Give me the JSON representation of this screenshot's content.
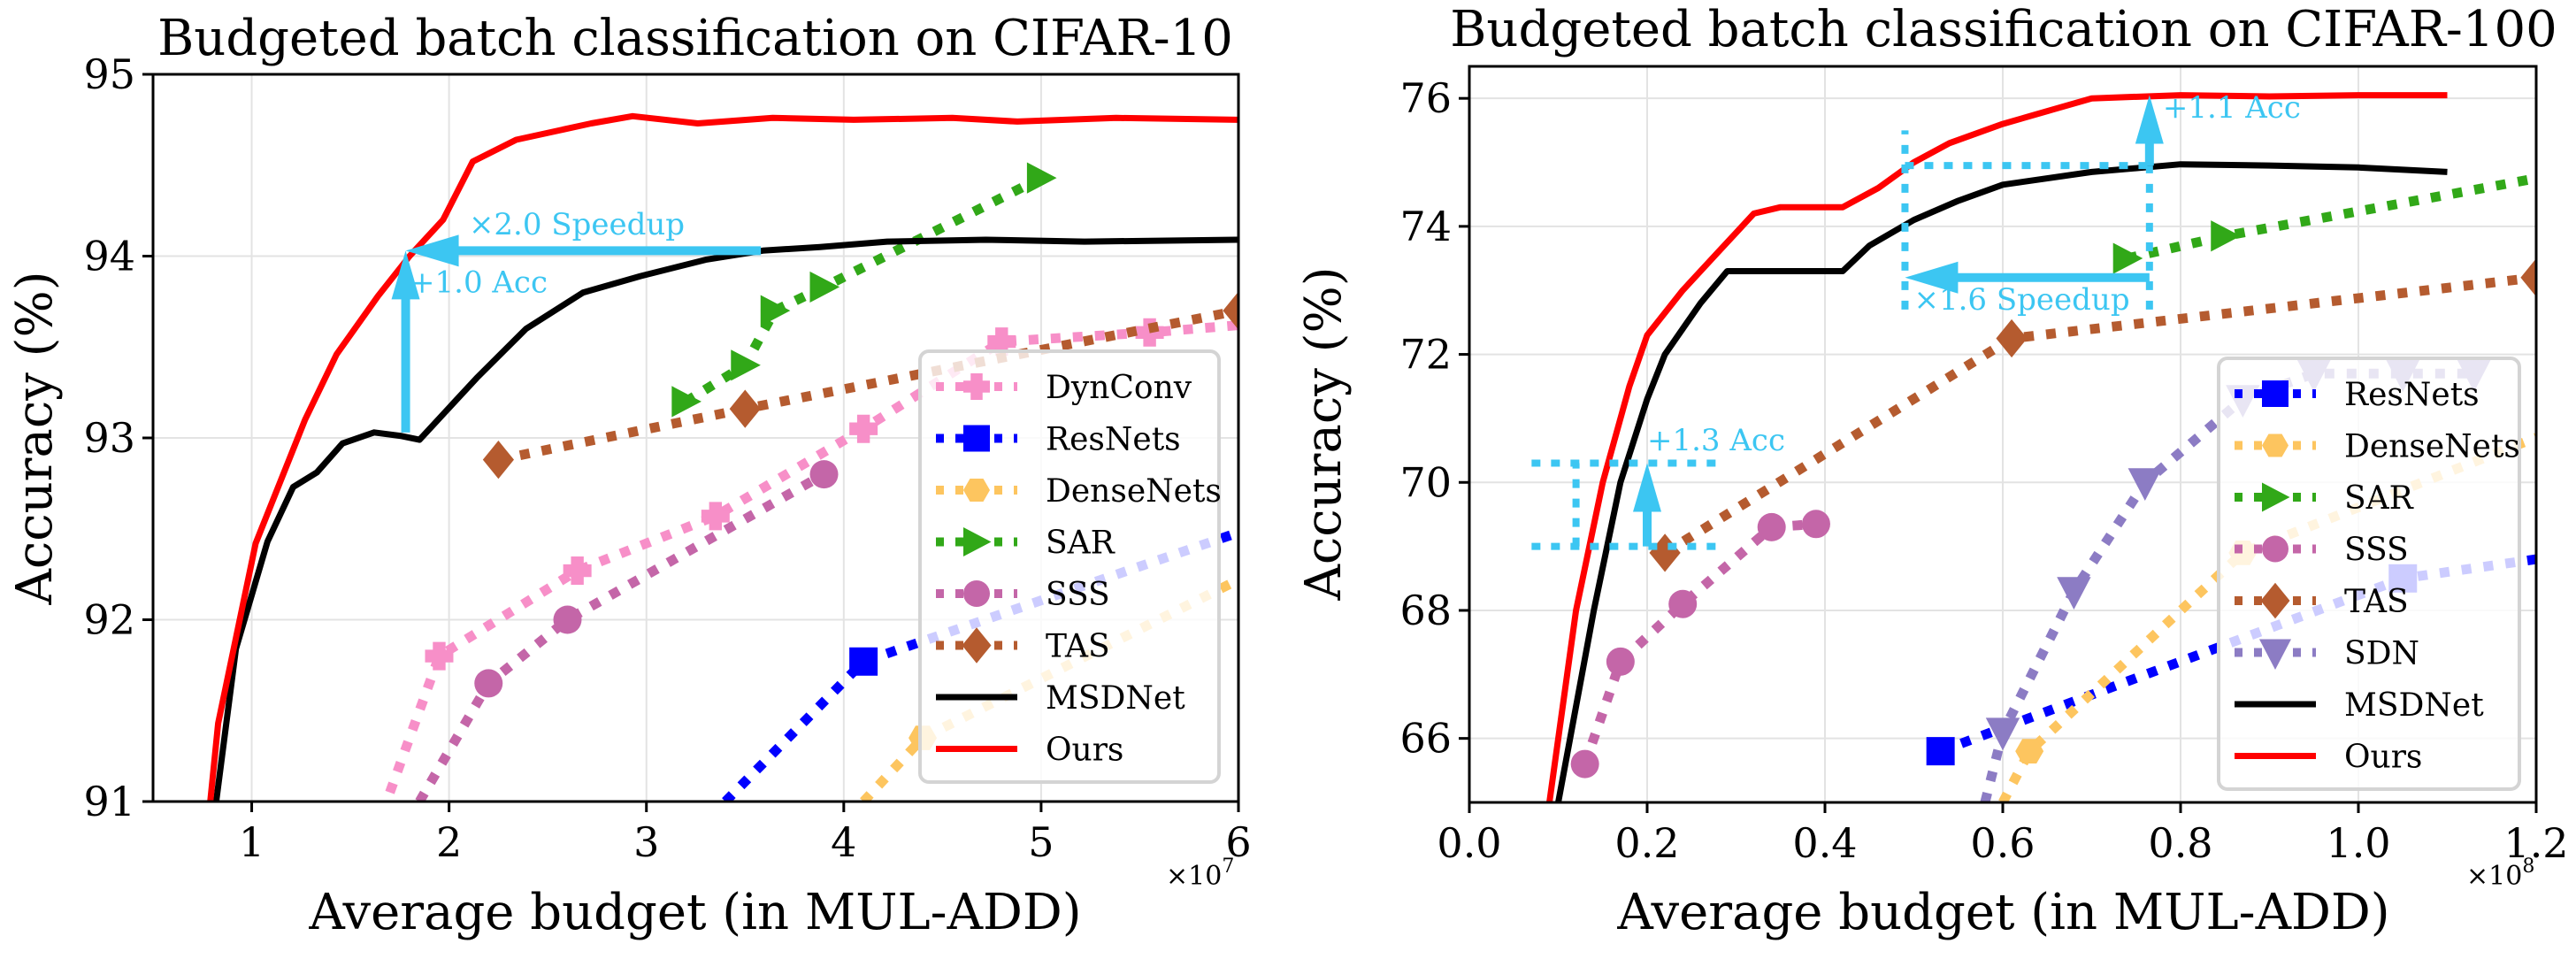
{
  "chart_data": [
    {
      "type": "line",
      "title": "Budgeted batch classification on CIFAR-10",
      "xlabel": "Average budget (in MUL-ADD)",
      "ylabel": "Accuracy (%)",
      "x_multiplier": "×10^7",
      "xlim": [
        0.5,
        6
      ],
      "ylim": [
        91,
        95
      ],
      "xticks": [
        1,
        2,
        3,
        4,
        5,
        6
      ],
      "xtick_labels": [
        "1",
        "2",
        "3",
        "4",
        "5",
        "6"
      ],
      "yticks": [
        91,
        92,
        93,
        94,
        95
      ],
      "ytick_labels": [
        "91",
        "92",
        "93",
        "94",
        "95"
      ],
      "grid": true,
      "legend_position": "bottom-right",
      "legend": [
        "DynConv",
        "ResNets",
        "DenseNets",
        "SAR",
        "SSS",
        "TAS",
        "MSDNet",
        "Ours"
      ],
      "series": [
        {
          "name": "DynConv",
          "color": "#f78fc8",
          "style": "dotted",
          "marker": "plus",
          "x": [
            1.7,
            1.95,
            2.65,
            3.35,
            4.1,
            4.8,
            5.55,
            6.0
          ],
          "y": [
            91.05,
            91.8,
            92.27,
            92.57,
            93.05,
            93.53,
            93.58,
            93.62
          ],
          "markers_at": [
            1,
            2,
            3,
            4,
            5,
            6
          ]
        },
        {
          "name": "ResNets",
          "color": "#0000ff",
          "style": "dotted",
          "marker": "square",
          "x": [
            3.4,
            4.1,
            6.0
          ],
          "y": [
            91.0,
            91.77,
            92.48
          ],
          "markers_at": [
            1
          ]
        },
        {
          "name": "DenseNets",
          "color": "#fdc55f",
          "style": "dotted",
          "marker": "hexagon",
          "x": [
            4.1,
            4.4,
            6.0
          ],
          "y": [
            91.0,
            91.35,
            92.22
          ],
          "markers_at": [
            1
          ]
        },
        {
          "name": "SAR",
          "color": "#31a818",
          "style": "dotted",
          "marker": "triangle-right",
          "x": [
            3.2,
            3.5,
            3.65,
            3.9,
            5.0
          ],
          "y": [
            93.2,
            93.4,
            93.7,
            93.83,
            94.43
          ],
          "markers_at": [
            0,
            1,
            2,
            3,
            4
          ]
        },
        {
          "name": "SSS",
          "color": "#c466a8",
          "style": "dotted",
          "marker": "circle",
          "x": [
            1.85,
            2.2,
            2.6,
            3.9
          ],
          "y": [
            91.0,
            91.65,
            92.0,
            92.8
          ],
          "markers_at": [
            1,
            2,
            3
          ]
        },
        {
          "name": "TAS",
          "color": "#b55b2f",
          "style": "dotted",
          "marker": "diamond",
          "x": [
            2.25,
            3.5,
            6.0
          ],
          "y": [
            92.88,
            93.16,
            93.7
          ],
          "markers_at": [
            0,
            1,
            2
          ]
        },
        {
          "name": "MSDNet",
          "color": "#000000",
          "style": "solid",
          "marker": "none",
          "x": [
            0.82,
            0.92,
            1.08,
            1.21,
            1.33,
            1.46,
            1.62,
            1.76,
            1.85,
            2.14,
            2.39,
            2.68,
            2.97,
            3.3,
            3.59,
            3.88,
            4.22,
            4.72,
            5.22,
            6.0
          ],
          "y": [
            91.0,
            91.84,
            92.43,
            92.73,
            92.81,
            92.97,
            93.03,
            93.01,
            92.99,
            93.33,
            93.6,
            93.8,
            93.89,
            93.98,
            94.03,
            94.05,
            94.08,
            94.09,
            94.08,
            94.09
          ]
        },
        {
          "name": "Ours",
          "color": "#ff0000",
          "style": "solid",
          "marker": "none",
          "x": [
            0.79,
            0.83,
            1.02,
            1.27,
            1.43,
            1.64,
            1.8,
            1.97,
            2.12,
            2.34,
            2.72,
            2.93,
            3.26,
            3.64,
            4.05,
            4.55,
            4.88,
            5.38,
            6.0
          ],
          "y": [
            91.0,
            91.43,
            92.42,
            93.1,
            93.46,
            93.78,
            94.0,
            94.2,
            94.52,
            94.64,
            94.73,
            94.77,
            94.73,
            94.76,
            94.75,
            94.76,
            94.74,
            94.76,
            94.75
          ]
        }
      ],
      "annotations": [
        {
          "text": "×2.0 Speedup",
          "type": "arrow-left",
          "from": [
            3.58,
            94.03
          ],
          "to": [
            1.78,
            94.03
          ],
          "text_at": [
            2.1,
            94.12
          ]
        },
        {
          "text": "+1.0 Acc",
          "type": "arrow-up",
          "from": [
            1.78,
            93.03
          ],
          "to": [
            1.78,
            94.03
          ],
          "text_at": [
            1.8,
            93.8
          ]
        }
      ]
    },
    {
      "type": "line",
      "title": "Budgeted batch classification on CIFAR-100",
      "xlabel": "Average budget (in MUL-ADD)",
      "ylabel": "Accuracy (%)",
      "x_multiplier": "×10^8",
      "xlim": [
        0.0,
        1.2
      ],
      "ylim": [
        65,
        76.5
      ],
      "xticks": [
        0.0,
        0.2,
        0.4,
        0.6,
        0.8,
        1.0,
        1.2
      ],
      "xtick_labels": [
        "0.0",
        "0.2",
        "0.4",
        "0.6",
        "0.8",
        "1.0",
        "1.2"
      ],
      "yticks": [
        66,
        68,
        70,
        72,
        74,
        76
      ],
      "ytick_labels": [
        "66",
        "68",
        "70",
        "72",
        "74",
        "76"
      ],
      "grid": true,
      "legend_position": "bottom-right",
      "legend": [
        "ResNets",
        "DenseNets",
        "SAR",
        "SSS",
        "TAS",
        "SDN",
        "MSDNet",
        "Ours"
      ],
      "series": [
        {
          "name": "ResNets",
          "color": "#0000ff",
          "style": "dotted",
          "marker": "square",
          "x": [
            0.53,
            1.05,
            1.2
          ],
          "y": [
            65.8,
            68.5,
            68.8
          ],
          "markers_at": [
            0,
            1
          ]
        },
        {
          "name": "DenseNets",
          "color": "#fdc55f",
          "style": "dotted",
          "marker": "hexagon",
          "x": [
            0.6,
            0.63,
            0.87,
            1.2
          ],
          "y": [
            65.0,
            65.8,
            68.9,
            70.7
          ],
          "markers_at": [
            1,
            2
          ]
        },
        {
          "name": "SAR",
          "color": "#31a818",
          "style": "dotted",
          "marker": "triangle-right",
          "x": [
            0.74,
            0.85,
            1.2
          ],
          "y": [
            73.5,
            73.85,
            74.75
          ],
          "markers_at": [
            0,
            1
          ]
        },
        {
          "name": "SSS",
          "color": "#c466a8",
          "style": "dotted",
          "marker": "circle",
          "x": [
            0.13,
            0.17,
            0.24,
            0.34,
            0.39
          ],
          "y": [
            65.6,
            67.2,
            68.1,
            69.3,
            69.35
          ],
          "markers_at": [
            0,
            1,
            2,
            3,
            4
          ]
        },
        {
          "name": "TAS",
          "color": "#b55b2f",
          "style": "dotted",
          "marker": "diamond",
          "x": [
            0.22,
            0.61,
            1.2
          ],
          "y": [
            68.9,
            72.25,
            73.2
          ],
          "markers_at": [
            0,
            1,
            2
          ]
        },
        {
          "name": "SDN",
          "color": "#8c7cc4",
          "style": "dotted",
          "marker": "triangle-down",
          "x": [
            0.58,
            0.6,
            0.68,
            0.76,
            0.87,
            0.95,
            1.05,
            1.13
          ],
          "y": [
            65.0,
            66.1,
            68.3,
            70.0,
            71.3,
            71.7,
            71.7,
            71.7
          ],
          "markers_at": [
            1,
            2,
            3,
            4,
            5,
            6,
            7
          ]
        },
        {
          "name": "MSDNet",
          "color": "#000000",
          "style": "solid",
          "marker": "none",
          "x": [
            0.1,
            0.14,
            0.17,
            0.2,
            0.22,
            0.26,
            0.29,
            0.32,
            0.38,
            0.42,
            0.45,
            0.5,
            0.55,
            0.6,
            0.7,
            0.8,
            0.9,
            1.0,
            1.1
          ],
          "y": [
            65.0,
            68.0,
            70.0,
            71.3,
            72.0,
            72.8,
            73.3,
            73.3,
            73.3,
            73.3,
            73.7,
            74.1,
            74.4,
            74.65,
            74.85,
            74.97,
            74.95,
            74.92,
            74.85
          ]
        },
        {
          "name": "Ours",
          "color": "#ff0000",
          "style": "solid",
          "marker": "none",
          "x": [
            0.09,
            0.12,
            0.15,
            0.18,
            0.2,
            0.24,
            0.28,
            0.3,
            0.32,
            0.35,
            0.38,
            0.42,
            0.46,
            0.5,
            0.54,
            0.6,
            0.65,
            0.7,
            0.8,
            0.9,
            1.0,
            1.1
          ],
          "y": [
            65.0,
            68.0,
            70.0,
            71.5,
            72.3,
            73.0,
            73.6,
            73.9,
            74.2,
            74.3,
            74.3,
            74.3,
            74.6,
            75.0,
            75.3,
            75.6,
            75.8,
            76.0,
            76.05,
            76.03,
            76.05,
            76.05
          ]
        }
      ],
      "annotations": [
        {
          "text": "+1.1 Acc",
          "type": "arrow-up",
          "from": [
            0.765,
            74.95
          ],
          "to": [
            0.765,
            76.05
          ],
          "text_at": [
            0.78,
            75.7
          ]
        },
        {
          "text": "×1.6 Speedup",
          "type": "arrow-left",
          "from": [
            0.765,
            73.2
          ],
          "to": [
            0.49,
            73.2
          ],
          "text_at": [
            0.5,
            72.7
          ]
        },
        {
          "text": "+1.3 Acc",
          "type": "arrow-up",
          "from": [
            0.2,
            69.0
          ],
          "to": [
            0.2,
            70.3
          ],
          "text_at": [
            0.2,
            70.5
          ]
        }
      ],
      "guides": [
        {
          "type": "hline-dotted",
          "y": 74.95,
          "x": [
            0.49,
            0.765
          ]
        },
        {
          "type": "vline-dotted",
          "x": 0.49,
          "y": [
            72.7,
            75.5
          ]
        },
        {
          "type": "vline-dotted",
          "x": 0.765,
          "y": [
            72.7,
            74.95
          ]
        },
        {
          "type": "hline-dotted",
          "y": 70.3,
          "x": [
            0.07,
            0.28
          ]
        },
        {
          "type": "hline-dotted",
          "y": 69.0,
          "x": [
            0.07,
            0.28
          ]
        },
        {
          "type": "vline-dotted",
          "x": 0.12,
          "y": [
            69.0,
            70.3
          ]
        }
      ]
    }
  ]
}
